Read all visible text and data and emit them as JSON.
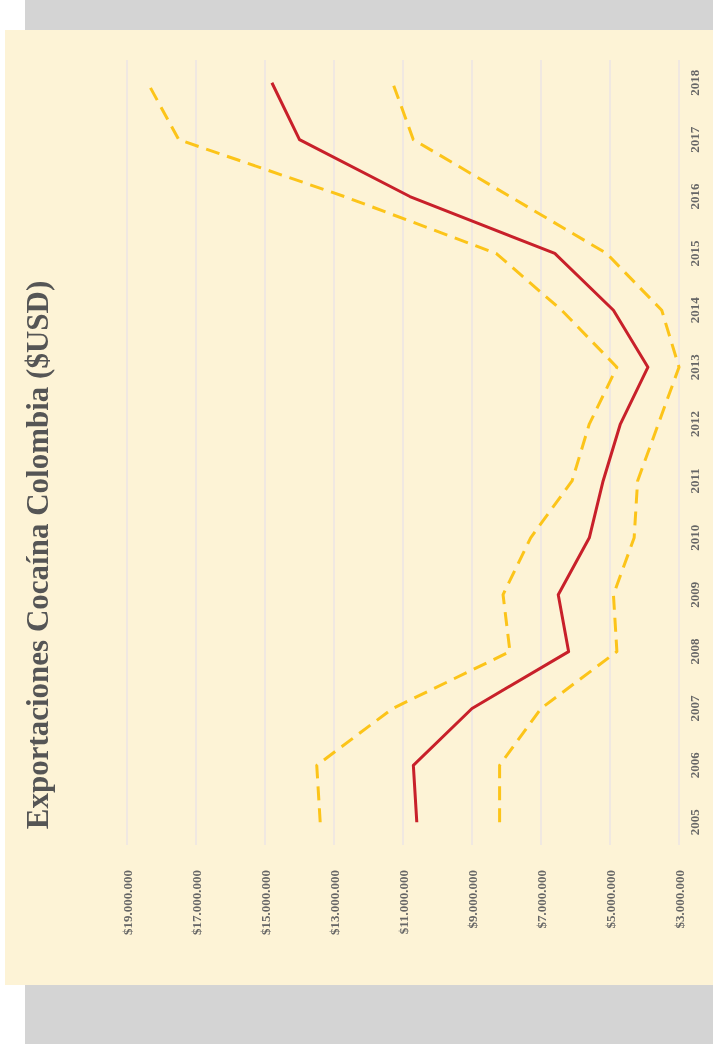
{
  "chart_data": {
    "type": "line",
    "title": "Exportaciones Cocaína Colombia ($USD)",
    "xlim": [
      19000000,
      3000000
    ],
    "xticks": [
      {
        "value": 19000000,
        "label": "$19.000.000"
      },
      {
        "value": 17000000,
        "label": "$17.000.000"
      },
      {
        "value": 15000000,
        "label": "$15.000.000"
      },
      {
        "value": 13000000,
        "label": "$13.000.000"
      },
      {
        "value": 11000000,
        "label": "$11.000.000"
      },
      {
        "value": 9000000,
        "label": "$9.000.000"
      },
      {
        "value": 7000000,
        "label": "$7.000.000"
      },
      {
        "value": 5000000,
        "label": "$5.000.000"
      },
      {
        "value": 3000000,
        "label": "$3.000.000"
      }
    ],
    "ylim": [
      2004.6,
      2018.4
    ],
    "yticks": [
      2005,
      2006,
      2007,
      2008,
      2009,
      2010,
      2011,
      2012,
      2013,
      2014,
      2015,
      2016,
      2017,
      2018
    ],
    "grid": "x",
    "marker": "none",
    "series": [
      {
        "color": "#fcc419",
        "line_style": "dashed",
        "x": [
          13400000,
          13500000,
          11300000,
          7900000,
          8100000,
          7300000,
          6100000,
          5600000,
          4800000,
          6400000,
          8300000,
          12700000,
          17500000,
          18400000
        ],
        "values": [
          2005,
          2006,
          2007,
          2008,
          2009,
          2010,
          2011,
          2012,
          2013,
          2014,
          2015,
          2016,
          2017,
          2018
        ]
      },
      {
        "color": "#fcc419",
        "line_style": "dashed",
        "x": [
          8200000,
          8200000,
          7000000,
          4800000,
          4900000,
          4300000,
          4200000,
          3600000,
          3000000,
          3500000,
          5100000,
          7900000,
          10700000,
          11300000
        ],
        "values": [
          2005,
          2006,
          2007,
          2008,
          2009,
          2010,
          2011,
          2012,
          2013,
          2014,
          2015,
          2016,
          2017,
          2018
        ]
      },
      {
        "color": "#c8202a",
        "line_style": "solid",
        "x": [
          10600000,
          10700000,
          9000000,
          6200000,
          6500000,
          5600000,
          5200000,
          4700000,
          3900000,
          4900000,
          6600000,
          10800000,
          14000000,
          14800000
        ],
        "values": [
          2005,
          2006,
          2007,
          2008,
          2009,
          2010,
          2011,
          2012,
          2013,
          2014,
          2015,
          2016,
          2017,
          2018
        ]
      }
    ]
  }
}
